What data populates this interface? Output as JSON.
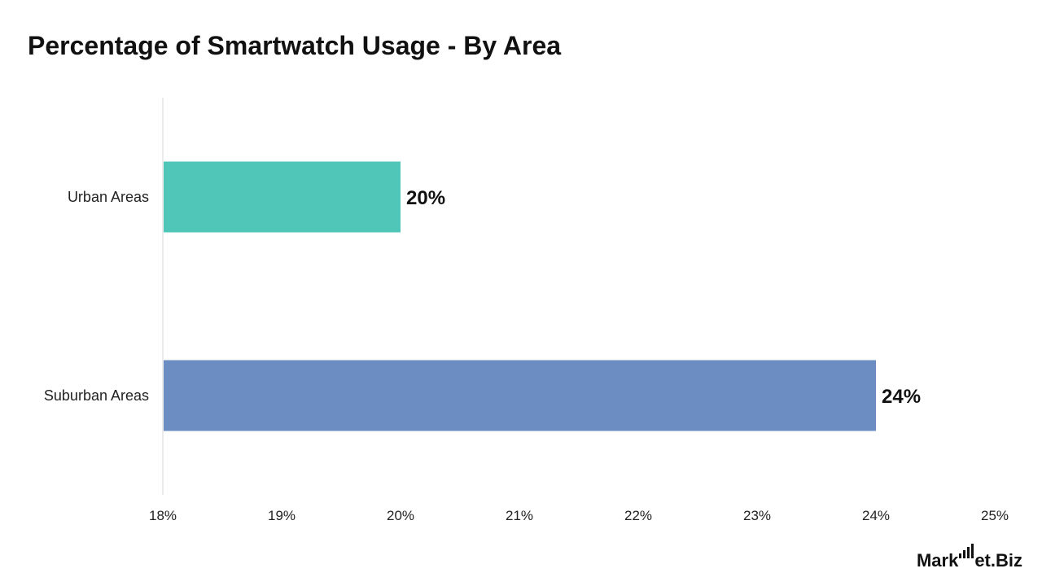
{
  "title": "Percentage of Smartwatch Usage - By Area",
  "logo": {
    "left": "Mark",
    "right": "et.Biz"
  },
  "chart_data": {
    "type": "bar",
    "orientation": "horizontal",
    "title": "Percentage of Smartwatch Usage - By Area",
    "categories": [
      "Urban Areas",
      "Suburban Areas"
    ],
    "values": [
      20,
      24
    ],
    "data_labels": [
      "20%",
      "24%"
    ],
    "colors": [
      "#50c6b8",
      "#6b8dc1"
    ],
    "xlim": [
      18,
      25
    ],
    "xticks": [
      18,
      19,
      20,
      21,
      22,
      23,
      24,
      25
    ],
    "xtick_labels": [
      "18%",
      "19%",
      "20%",
      "21%",
      "22%",
      "23%",
      "24%",
      "25%"
    ],
    "xlabel": "",
    "ylabel": "",
    "grid": false,
    "legend": "none"
  }
}
